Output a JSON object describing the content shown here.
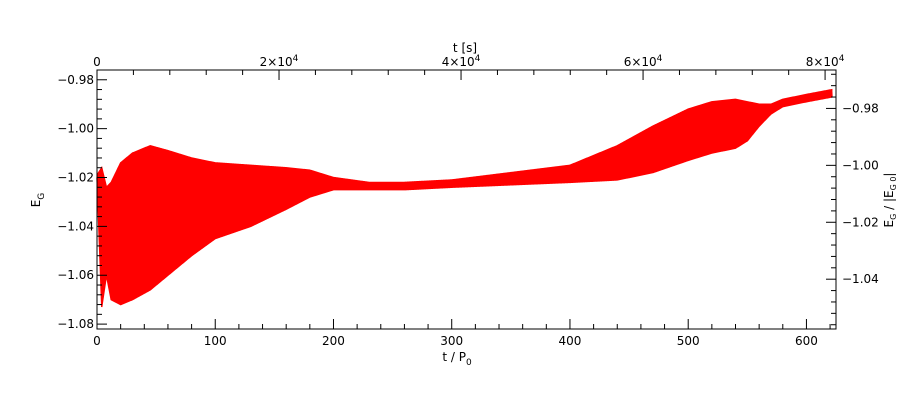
{
  "chart_data": {
    "type": "line",
    "title": "",
    "xlabel": "t / P",
    "xlabel_sub": "0",
    "x2label": "t [s]",
    "ylabel": "E",
    "ylabel_sub": "G",
    "y2label": "E",
    "y2label_sub1": "G",
    "y2label_mid": " / |E",
    "y2label_sub2": "G 0",
    "y2label_end": "|",
    "xlim": [
      0,
      625
    ],
    "ylim": [
      -1.082,
      -0.976
    ],
    "x2lim": [
      0,
      81200
    ],
    "y2lim": [
      -1.0575,
      -0.9665
    ],
    "xticks": [
      0,
      100,
      200,
      300,
      400,
      500,
      600
    ],
    "yticks": [
      -1.08,
      -1.06,
      -1.04,
      -1.02,
      -1.0,
      -0.98
    ],
    "ytick_labels": [
      "−1.08",
      "−1.06",
      "−1.04",
      "−1.02",
      "−1.00",
      "−0.98"
    ],
    "x2ticks": [
      0,
      20000,
      40000,
      60000,
      80000
    ],
    "x2tick_labels": [
      "0",
      "2×10",
      "4×10",
      "6×10",
      "8×10"
    ],
    "x2tick_exp": "4",
    "y2ticks": [
      -1.04,
      -1.02,
      -1.0,
      -0.98
    ],
    "y2tick_labels": [
      "−1.04",
      "−1.02",
      "−1.00",
      "−0.98"
    ],
    "series": [
      {
        "color": "#ff0000",
        "envelope": {
          "x": [
            0,
            4,
            8,
            12,
            20,
            30,
            45,
            60,
            80,
            100,
            130,
            160,
            180,
            200,
            230,
            260,
            300,
            350,
            400,
            440,
            470,
            500,
            520,
            540,
            550,
            560,
            570,
            580,
            600,
            622
          ],
          "upper": [
            -1.019,
            -1.016,
            -1.024,
            -1.022,
            -1.014,
            -1.01,
            -1.007,
            -1.009,
            -1.012,
            -1.014,
            -1.015,
            -1.016,
            -1.017,
            -1.02,
            -1.022,
            -1.022,
            -1.021,
            -1.018,
            -1.015,
            -1.007,
            -0.999,
            -0.992,
            -0.989,
            -0.988,
            -0.989,
            -0.99,
            -0.99,
            -0.988,
            -0.986,
            -0.984
          ],
          "lower": [
            -1.02,
            -1.073,
            -1.06,
            -1.07,
            -1.072,
            -1.07,
            -1.066,
            -1.06,
            -1.052,
            -1.045,
            -1.04,
            -1.033,
            -1.028,
            -1.025,
            -1.025,
            -1.025,
            -1.024,
            -1.023,
            -1.022,
            -1.021,
            -1.018,
            -1.013,
            -1.01,
            -1.008,
            -1.005,
            -0.999,
            -0.994,
            -0.991,
            -0.989,
            -0.987
          ]
        }
      }
    ]
  }
}
